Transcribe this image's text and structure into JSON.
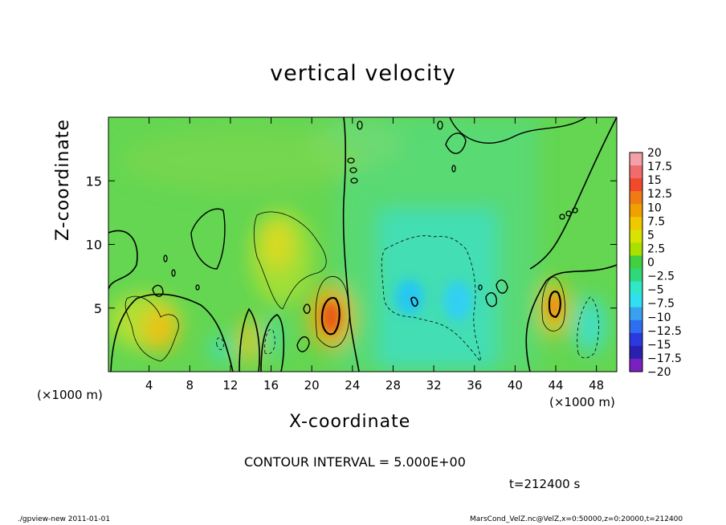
{
  "chart_data": {
    "type": "heatmap",
    "title": "vertical velocity",
    "xlabel": "X-coordinate",
    "ylabel": "Z-coordinate",
    "x_unit_label_left": "(×1000 m)",
    "x_unit_label_right": "(×1000 m)",
    "xlim": [
      0,
      50
    ],
    "ylim": [
      0,
      20
    ],
    "x_ticks": [
      4,
      8,
      12,
      16,
      20,
      24,
      28,
      32,
      36,
      40,
      44,
      48
    ],
    "y_ticks": [
      5,
      10,
      15
    ],
    "colorbar_levels": [
      "20",
      "17.5",
      "15",
      "12.5",
      "10",
      "7.5",
      "5",
      "2.5",
      "0",
      "−2.5",
      "−5",
      "−7.5",
      "−10",
      "−12.5",
      "−15",
      "−17.5",
      "−20"
    ],
    "colorbar_colors": [
      "#f4a0a8",
      "#f06c6c",
      "#f04a2a",
      "#f07a14",
      "#f0a000",
      "#f0c800",
      "#d8e400",
      "#a8e000",
      "#40d040",
      "#30d87a",
      "#30e8c8",
      "#30e0f0",
      "#3aa0f0",
      "#2e6ef0",
      "#2a3ae0",
      "#2a20b0",
      "#7a20c0"
    ],
    "contour_interval": "CONTOUR INTERVAL = 5.000E+00",
    "time_label": "t=212400 s",
    "features": [
      {
        "x": 21.8,
        "z": 4.8,
        "value": 13
      },
      {
        "x": 43.8,
        "z": 5.5,
        "value": 10
      },
      {
        "x": 5.5,
        "z": 3.5,
        "value": 8
      },
      {
        "x": 13.5,
        "z": 2.3,
        "value": 7
      },
      {
        "x": 16.5,
        "z": 9.5,
        "value": 6
      },
      {
        "x": 30.0,
        "z": 5.5,
        "value": -6
      },
      {
        "x": 34.0,
        "z": 6.0,
        "value": -5
      },
      {
        "x": 46.5,
        "z": 4.0,
        "value": -3.5
      }
    ]
  },
  "footer": {
    "left": "./gpview-new   2011-01-01",
    "right": "MarsCond_VelZ.nc@VelZ,x=0:50000,z=0:20000,t=212400"
  }
}
